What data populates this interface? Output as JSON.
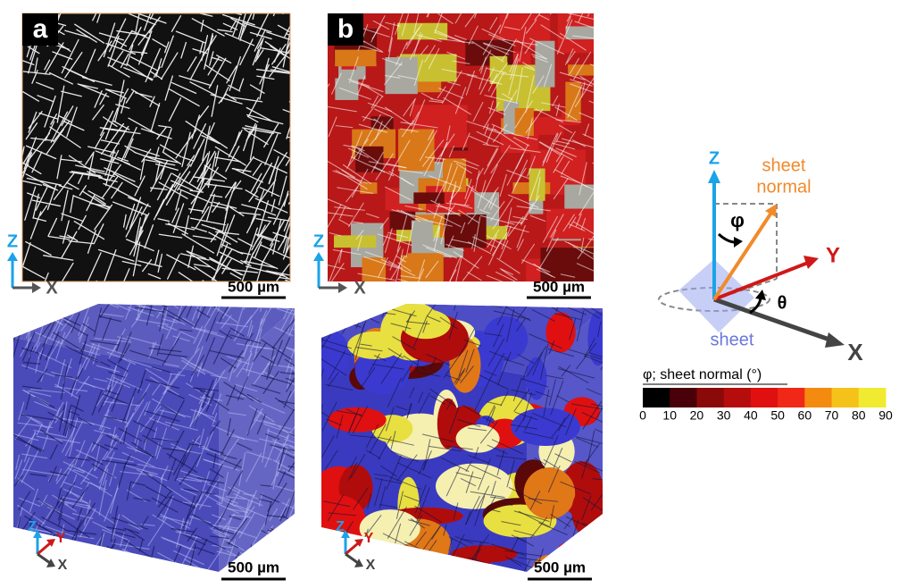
{
  "panels": [
    {
      "label": "a",
      "scale_bar": "500 µm",
      "axes": [
        "Z",
        "X"
      ]
    },
    {
      "label": "b",
      "scale_bar": "500 µm",
      "axes": [
        "Z",
        "X"
      ]
    }
  ],
  "bottom_panels": [
    {
      "scale_bar": "500 µm",
      "axes": [
        "Z",
        "Y",
        "X"
      ]
    },
    {
      "scale_bar": "500 µm",
      "axes": [
        "Z",
        "Y",
        "X"
      ]
    }
  ],
  "diagram": {
    "z_label": "Z",
    "sheet_normal_label": [
      "sheet",
      "normal"
    ],
    "phi": "φ",
    "y_label": "Y",
    "theta": "θ",
    "sheet_label": "sheet",
    "x_label": "X"
  },
  "colorbar": {
    "title": "φ; sheet normal (°)",
    "ticks": [
      0,
      10,
      20,
      30,
      40,
      50,
      60,
      70,
      80,
      90
    ],
    "colors": [
      "#000000",
      "#4a0008",
      "#8a0a0a",
      "#b50c0c",
      "#e01010",
      "#f02818",
      "#f58a10",
      "#f5c21a",
      "#f0ea30",
      "#fbf8c0"
    ]
  }
}
